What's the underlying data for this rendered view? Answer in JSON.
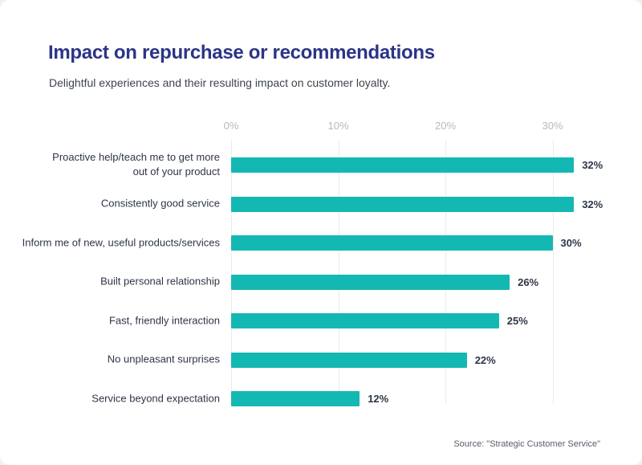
{
  "page": {
    "title": "Impact on repurchase or recommendations",
    "subtitle": "Delightful experiences and their resulting impact on customer loyalty.",
    "source": "Source: \"Strategic Customer Service\""
  },
  "colors": {
    "bar": "#14b8b3",
    "title": "#2b3487",
    "subtitle": "#3e444c",
    "label": "#2e3547",
    "tick": "#b5b9bd",
    "gridline": "#ebebed",
    "source": "#575d68",
    "card_background": "#ffffff",
    "page_background": "#f1f1ee"
  },
  "chart_data": {
    "type": "bar",
    "orientation": "horizontal",
    "title": "Impact on repurchase or recommendations",
    "subtitle": "Delightful experiences and their resulting impact on customer loyalty.",
    "xlabel": "",
    "ylabel": "",
    "categories": [
      "Proactive help/teach me to get more\nout of your product",
      "Consistently good service",
      "Inform me of new, useful products/services",
      "Built personal relationship",
      "Fast, friendly interaction",
      "No unpleasant surprises",
      "Service beyond expectation"
    ],
    "values": [
      32,
      32,
      30,
      26,
      25,
      22,
      12
    ],
    "value_labels": [
      "32%",
      "32%",
      "30%",
      "26%",
      "25%",
      "22%",
      "12%"
    ],
    "x_ticks": [
      "0%",
      "10%",
      "20%",
      "30%"
    ],
    "x_tick_values": [
      0,
      10,
      20,
      30
    ],
    "xlim": [
      0,
      35
    ],
    "grid": "vertical-only",
    "legend": "none",
    "source": "Source: \"Strategic Customer Service\""
  }
}
